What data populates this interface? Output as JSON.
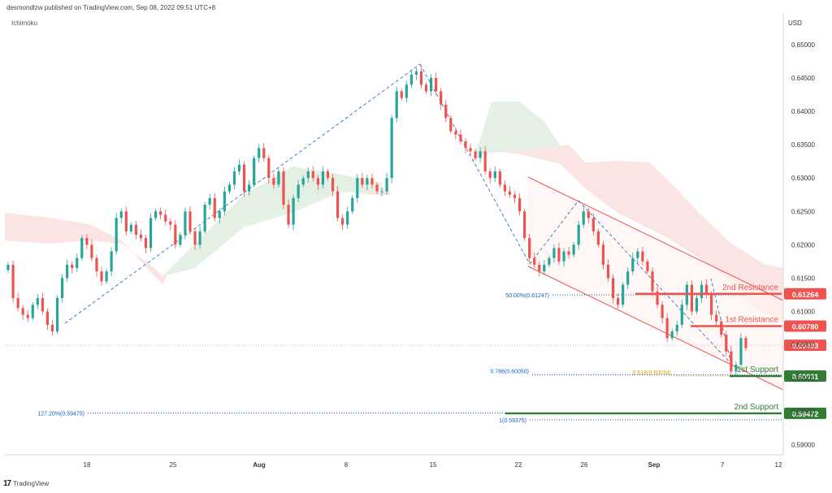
{
  "header": {
    "publisher": "desmondlzw published on TradingView.com, Sep 08, 2022 09:51 UTC+8",
    "indicator": "Ichimoku",
    "currency": "USD",
    "footer_brand": "TradingView"
  },
  "colors": {
    "bull": "#26a69a",
    "bear": "#ef5350",
    "fib": "#1565c0",
    "fib_gold": "#e6a100",
    "channel": "#ef5350",
    "resistance": "#ef5350",
    "support": "#2e7d32",
    "cloud_bull": "#e2f1e3",
    "cloud_bear": "#fbe1e1"
  },
  "chart_data": {
    "type": "candlestick",
    "y_range": [
      0.5885,
      0.6545
    ],
    "y_ticks": [
      "0.65000",
      "0.64500",
      "0.64000",
      "0.63500",
      "0.63000",
      "0.62500",
      "0.62000",
      "0.61500",
      "0.61000",
      "0.60500",
      "0.60000",
      "0.59500",
      "0.59000"
    ],
    "x_ticks": [
      "18",
      "25",
      "Aug",
      "8",
      "15",
      "22",
      "26",
      "Sep",
      "7",
      "12"
    ],
    "closes": [
      0.617,
      0.612,
      0.6105,
      0.6095,
      0.609,
      0.611,
      0.612,
      0.61,
      0.608,
      0.607,
      0.612,
      0.615,
      0.617,
      0.6165,
      0.618,
      0.621,
      0.62,
      0.618,
      0.616,
      0.6145,
      0.616,
      0.619,
      0.624,
      0.625,
      0.622,
      0.623,
      0.6215,
      0.621,
      0.6195,
      0.624,
      0.625,
      0.6245,
      0.6235,
      0.623,
      0.62,
      0.6215,
      0.625,
      0.622,
      0.62,
      0.622,
      0.626,
      0.627,
      0.624,
      0.625,
      0.628,
      0.629,
      0.631,
      0.632,
      0.628,
      0.629,
      0.633,
      0.6345,
      0.633,
      0.63,
      0.629,
      0.631,
      0.626,
      0.623,
      0.627,
      0.629,
      0.63,
      0.631,
      0.63,
      0.629,
      0.631,
      0.63,
      0.628,
      0.624,
      0.623,
      0.625,
      0.627,
      0.63,
      0.629,
      0.63,
      0.629,
      0.628,
      0.628,
      0.63,
      0.639,
      0.643,
      0.642,
      0.644,
      0.6455,
      0.646,
      0.644,
      0.643,
      0.645,
      0.643,
      0.641,
      0.639,
      0.637,
      0.6365,
      0.6355,
      0.6345,
      0.634,
      0.633,
      0.634,
      0.631,
      0.63,
      0.631,
      0.629,
      0.628,
      0.6275,
      0.627,
      0.625,
      0.621,
      0.618,
      0.617,
      0.616,
      0.617,
      0.618,
      0.6195,
      0.6175,
      0.619,
      0.6185,
      0.62,
      0.623,
      0.625,
      0.624,
      0.622,
      0.62,
      0.617,
      0.615,
      0.612,
      0.611,
      0.614,
      0.616,
      0.618,
      0.619,
      0.6175,
      0.616,
      0.613,
      0.611,
      0.609,
      0.606,
      0.607,
      0.608,
      0.611,
      0.614,
      0.61,
      0.612,
      0.614,
      0.6125,
      0.6095,
      0.6085,
      0.6065,
      0.604,
      0.601,
      0.602,
      0.606,
      0.6045
    ],
    "levels": [
      {
        "label": "2nd Resistance",
        "price": "0.61264",
        "value": 0.61264,
        "role": "resistance"
      },
      {
        "label": "1st Resistance",
        "price": "0.60780",
        "value": 0.6078,
        "role": "resistance"
      },
      {
        "label": "",
        "price": "0.60493",
        "value": 0.60493,
        "role": "current"
      },
      {
        "label": "1st Support",
        "price": "0.60031",
        "value": 0.60031,
        "role": "support"
      },
      {
        "label": "2nd Support",
        "price": "0.59472",
        "value": 0.59472,
        "role": "support"
      }
    ],
    "fib_labels": [
      {
        "text": "50.00%(0.61247)",
        "value": 0.61247
      },
      {
        "text": "0.786(0.60050)",
        "value": 0.6005
      },
      {
        "text": "0.618(0.60034)",
        "value": 0.60034
      },
      {
        "text": "127.20%(0.59475)",
        "value": 0.59475
      },
      {
        "text": "1(0.59375)",
        "value": 0.59375
      }
    ]
  }
}
